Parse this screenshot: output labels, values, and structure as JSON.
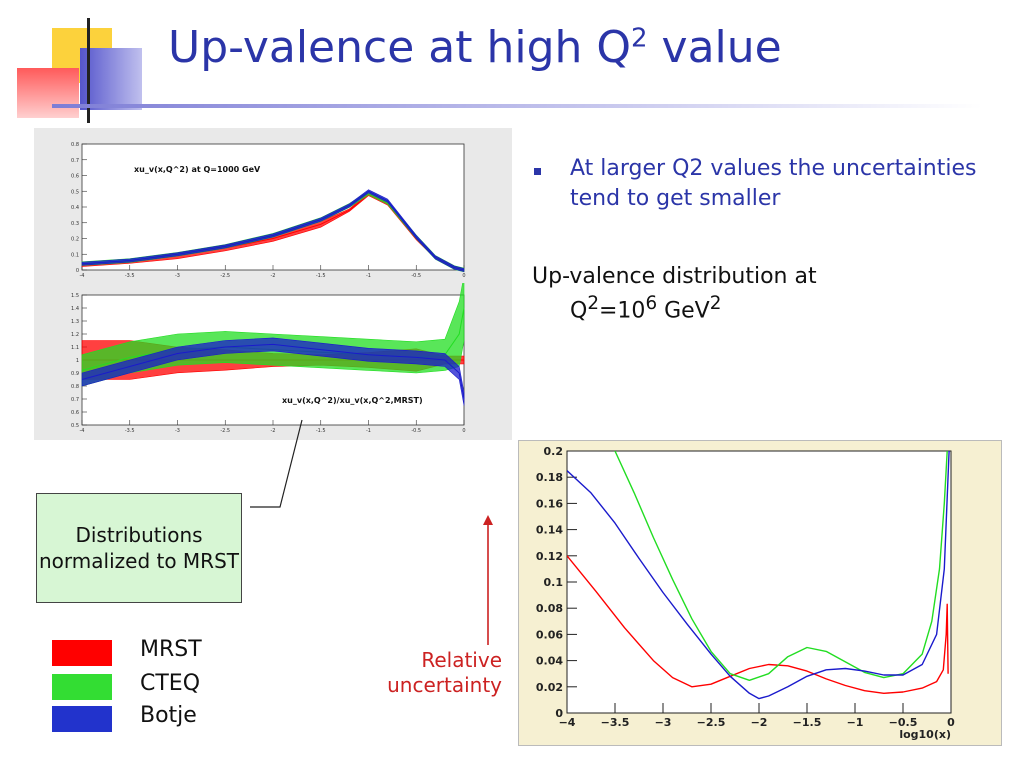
{
  "slide": {
    "title_main": "Up-valence at high Q",
    "title_sup": "2",
    "title_end": " value"
  },
  "bullet": {
    "text": "At larger Q2 values the uncertainties tend to get smaller"
  },
  "distribution": {
    "line1": "Up-valence distribution at",
    "line2_pre": "Q",
    "line2_sup1": "2",
    "line2_mid": "=10",
    "line2_sup2": "6",
    "line2_unit": " GeV",
    "line2_sup3": "2"
  },
  "callout": {
    "text": "Distributions normalized to MRST"
  },
  "legend": [
    {
      "label": "MRST",
      "color": "#ff0000"
    },
    {
      "label": "CTEQ",
      "color": "#33dd33"
    },
    {
      "label": "Botje",
      "color": "#2233cc"
    }
  ],
  "relative_label": "Relative uncertainty",
  "colors": {
    "title": "#2b35a8",
    "mrst": "#ff0000",
    "cteq": "#22dd22",
    "botje": "#1a1acc",
    "arrow": "#cc2222"
  },
  "chart_data": [
    {
      "type": "area",
      "title": "xu_v(x,Q^2) at Q=1000 GeV",
      "xlim": [
        -4,
        0
      ],
      "ylim": [
        0,
        0.8
      ],
      "x_ticks": [
        "-4",
        "-3.5",
        "-3",
        "-2.5",
        "-2",
        "-1.5",
        "-1",
        "-0.5",
        "0"
      ],
      "y_ticks": [
        "0",
        "0.1",
        "0.2",
        "0.3",
        "0.4",
        "0.5",
        "0.6",
        "0.7",
        "0.8"
      ],
      "x": [
        -4,
        -3.5,
        -3,
        -2.5,
        -2,
        -1.5,
        -1.2,
        -1,
        -0.8,
        -0.5,
        -0.3,
        -0.1,
        0
      ],
      "series": [
        {
          "name": "MRST",
          "values": [
            0.03,
            0.05,
            0.09,
            0.14,
            0.2,
            0.29,
            0.38,
            0.48,
            0.42,
            0.2,
            0.08,
            0.015,
            0
          ]
        },
        {
          "name": "CTEQ",
          "values": [
            0.04,
            0.06,
            0.1,
            0.15,
            0.22,
            0.32,
            0.41,
            0.49,
            0.43,
            0.21,
            0.08,
            0.015,
            0
          ]
        },
        {
          "name": "Botje",
          "values": [
            0.04,
            0.06,
            0.1,
            0.15,
            0.22,
            0.32,
            0.41,
            0.5,
            0.44,
            0.21,
            0.08,
            0.015,
            0
          ]
        }
      ]
    },
    {
      "type": "area",
      "title": "xu_v(x,Q^2)/xu_v(x,Q^2,MRST)",
      "xlim": [
        -4,
        0
      ],
      "ylim": [
        0.5,
        1.5
      ],
      "x_ticks": [
        "-4",
        "-3.5",
        "-3",
        "-2.5",
        "-2",
        "-1.5",
        "-1",
        "-0.5",
        "0"
      ],
      "y_ticks": [
        "0.5",
        "0.6",
        "0.7",
        "0.8",
        "0.9",
        "1",
        "1.1",
        "1.2",
        "1.3",
        "1.4",
        "1.5"
      ],
      "x": [
        -4,
        -3.5,
        -3,
        -2.5,
        -2,
        -1.5,
        -1,
        -0.5,
        -0.2,
        -0.05,
        0
      ],
      "series": [
        {
          "name": "MRST",
          "values": [
            1,
            1,
            1,
            1,
            1,
            1,
            1,
            1,
            1,
            1,
            1
          ]
        },
        {
          "name": "CTEQ",
          "values": [
            0.92,
            1.02,
            1.08,
            1.1,
            1.08,
            1.06,
            1.04,
            1.02,
            1.04,
            1.2,
            1.4
          ]
        },
        {
          "name": "Botje",
          "values": [
            0.85,
            0.95,
            1.05,
            1.1,
            1.12,
            1.08,
            1.04,
            1.02,
            1.0,
            0.9,
            0.7
          ]
        }
      ]
    },
    {
      "type": "line",
      "xlabel": "log10(x)",
      "xlim": [
        -4,
        0
      ],
      "ylim": [
        0,
        0.2
      ],
      "x_ticks": [
        "-4",
        "-3.5",
        "-3",
        "-2.5",
        "-2",
        "-1.5",
        "-1",
        "-0.5",
        "0"
      ],
      "y_ticks": [
        "0",
        "0.02",
        "0.04",
        "0.06",
        "0.08",
        "0.1",
        "0.12",
        "0.14",
        "0.16",
        "0.18",
        "0.2"
      ],
      "series": [
        {
          "name": "MRST",
          "x": [
            -4,
            -3.7,
            -3.4,
            -3.1,
            -2.9,
            -2.7,
            -2.5,
            -2.3,
            -2.1,
            -1.9,
            -1.7,
            -1.5,
            -1.3,
            -1.1,
            -0.9,
            -0.7,
            -0.5,
            -0.3,
            -0.15,
            -0.08,
            -0.05,
            -0.04,
            -0.03
          ],
          "values": [
            0.12,
            0.093,
            0.065,
            0.04,
            0.027,
            0.02,
            0.022,
            0.028,
            0.034,
            0.037,
            0.036,
            0.032,
            0.026,
            0.021,
            0.017,
            0.015,
            0.016,
            0.019,
            0.024,
            0.033,
            0.06,
            0.083,
            0.03
          ]
        },
        {
          "name": "CTEQ",
          "x": [
            -3.5,
            -3.3,
            -3.1,
            -2.9,
            -2.7,
            -2.5,
            -2.3,
            -2.1,
            -1.9,
            -1.7,
            -1.5,
            -1.3,
            -1.1,
            -0.9,
            -0.7,
            -0.5,
            -0.3,
            -0.2,
            -0.12,
            -0.07,
            -0.04
          ],
          "values": [
            0.2,
            0.168,
            0.134,
            0.102,
            0.072,
            0.047,
            0.03,
            0.025,
            0.03,
            0.043,
            0.05,
            0.047,
            0.039,
            0.031,
            0.027,
            0.03,
            0.045,
            0.07,
            0.11,
            0.16,
            0.2
          ]
        },
        {
          "name": "Botje",
          "x": [
            -4,
            -3.75,
            -3.5,
            -3.25,
            -3,
            -2.75,
            -2.5,
            -2.3,
            -2.1,
            -2,
            -1.9,
            -1.7,
            -1.5,
            -1.3,
            -1.1,
            -0.9,
            -0.7,
            -0.5,
            -0.3,
            -0.15,
            -0.07,
            -0.02
          ],
          "values": [
            0.185,
            0.168,
            0.145,
            0.118,
            0.092,
            0.068,
            0.045,
            0.028,
            0.015,
            0.011,
            0.013,
            0.02,
            0.028,
            0.033,
            0.034,
            0.032,
            0.029,
            0.029,
            0.037,
            0.06,
            0.11,
            0.2
          ]
        }
      ]
    }
  ]
}
